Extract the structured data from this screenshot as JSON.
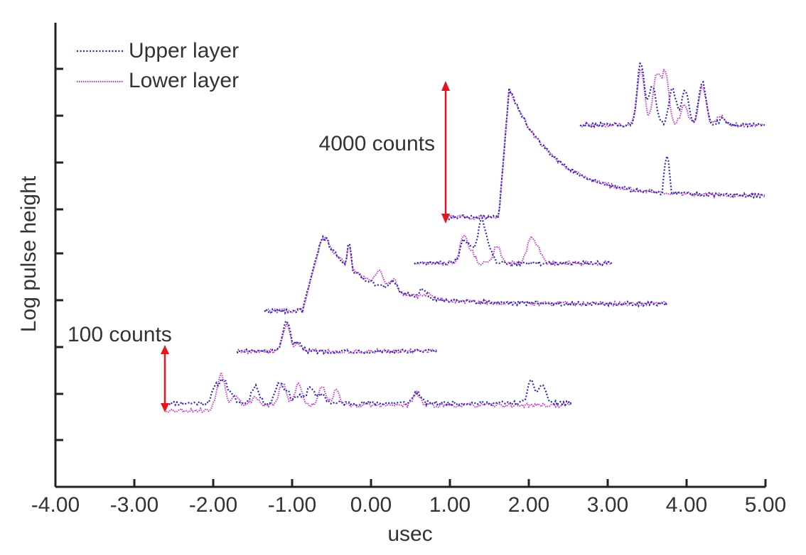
{
  "chart_data": {
    "type": "line",
    "title": "",
    "xlabel": "usec",
    "ylabel": "Log pulse height",
    "xlim": [
      -4.0,
      5.0
    ],
    "x_ticks": [
      -4,
      -3,
      -2,
      -1,
      0,
      1,
      2,
      3,
      4,
      5
    ],
    "x_tick_labels": [
      "-4.00",
      "-3.00",
      "-2.00",
      "-1.00",
      "0.00",
      "1.00",
      "2.00",
      "3.00",
      "4.00",
      "5.00"
    ],
    "y_tick_count": 9,
    "y_tick_labels": [],
    "grid": false,
    "legend": {
      "placement": "top-left",
      "entries": [
        {
          "name": "Upper layer",
          "color": "#2b2bb0",
          "style": "dotted"
        },
        {
          "name": "Lower layer",
          "color": "#c43cc4",
          "style": "dotted"
        }
      ]
    },
    "annotations": [
      {
        "text": "4000 counts",
        "arrow_color": "#e8141c"
      },
      {
        "text": "100 counts",
        "arrow_color": "#e8141c"
      }
    ],
    "traces": [
      {
        "x_range": [
          -2.6,
          2.55
        ],
        "baseline": 0,
        "upper_peaks": [
          [
            -1.97,
            22
          ],
          [
            -1.87,
            32
          ],
          [
            -1.77,
            10
          ],
          [
            -1.47,
            25
          ],
          [
            -1.17,
            28
          ],
          [
            -1.07,
            16
          ],
          [
            -0.92,
            10
          ],
          [
            -0.77,
            24
          ],
          [
            -0.62,
            12
          ],
          [
            0.58,
            16
          ],
          [
            2.03,
            30
          ],
          [
            2.17,
            26
          ]
        ],
        "lower_peaks": [
          [
            -1.9,
            46
          ],
          [
            -1.72,
            16
          ],
          [
            -1.47,
            12
          ],
          [
            -1.12,
            30
          ],
          [
            -0.92,
            30
          ],
          [
            -0.62,
            28
          ],
          [
            -0.44,
            20
          ],
          [
            0.58,
            16
          ]
        ]
      },
      {
        "x_range": [
          -1.7,
          0.85
        ],
        "baseline": 0,
        "upper_peaks": [
          [
            -1.07,
            42
          ],
          [
            -0.92,
            14
          ]
        ],
        "lower_peaks": [
          [
            -1.07,
            38
          ],
          [
            -0.92,
            10
          ]
        ]
      },
      {
        "x_range": [
          -1.35,
          3.75
        ],
        "baseline": 0,
        "upper_peaks": [
          [
            -0.56,
            105
          ],
          [
            -0.28,
            95
          ],
          [
            0.28,
            40
          ],
          [
            0.65,
            28
          ]
        ],
        "lower_peaks": [
          [
            -0.56,
            104
          ],
          [
            -0.28,
            93
          ],
          [
            0.1,
            62
          ],
          [
            0.28,
            50
          ],
          [
            0.72,
            18
          ]
        ]
      },
      {
        "x_range": [
          0.55,
          3.05
        ],
        "baseline": 0,
        "upper_peaks": [
          [
            1.17,
            30
          ],
          [
            1.27,
            22
          ],
          [
            1.4,
            60
          ],
          [
            1.5,
            20
          ]
        ],
        "lower_peaks": [
          [
            1.17,
            38
          ],
          [
            1.27,
            16
          ],
          [
            1.6,
            25
          ],
          [
            2.02,
            35
          ],
          [
            2.12,
            20
          ]
        ]
      },
      {
        "x_range": [
          0.95,
          5.0
        ],
        "baseline": 0,
        "upper_peaks": [
          [
            1.75,
            182
          ],
          [
            2.35,
            110
          ],
          [
            3.05,
            58
          ],
          [
            3.75,
            85
          ]
        ],
        "lower_peaks": [
          [
            1.75,
            182
          ],
          [
            2.35,
            108
          ],
          [
            3.05,
            56
          ]
        ]
      },
      {
        "x_range": [
          2.65,
          5.0
        ],
        "baseline": 0,
        "upper_peaks": [
          [
            3.42,
            88
          ],
          [
            3.57,
            56
          ],
          [
            3.82,
            52
          ],
          [
            3.98,
            48
          ],
          [
            4.2,
            60
          ],
          [
            4.45,
            8
          ]
        ],
        "lower_peaks": [
          [
            3.42,
            80
          ],
          [
            3.62,
            70
          ],
          [
            3.73,
            72
          ],
          [
            3.97,
            30
          ],
          [
            4.2,
            56
          ],
          [
            4.43,
            12
          ]
        ]
      }
    ]
  }
}
